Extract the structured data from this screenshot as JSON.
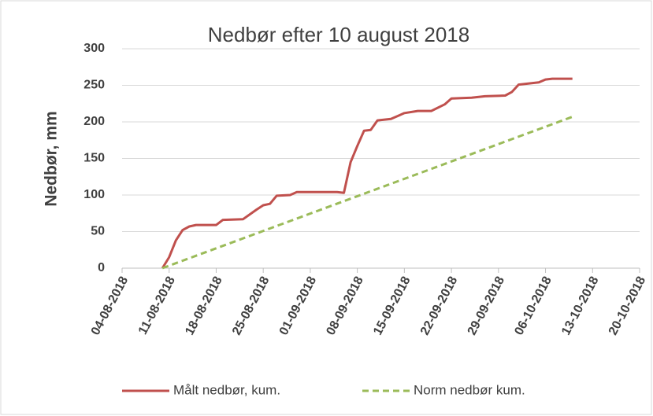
{
  "chart_data": {
    "type": "line",
    "title": "Nedbør efter 10 august 2018",
    "y_label": "Nedbør, mm",
    "xlim": [
      "04-08-2018",
      "20-10-2018"
    ],
    "xticks": [
      "04-08-2018",
      "11-08-2018",
      "18-08-2018",
      "25-08-2018",
      "01-09-2018",
      "08-09-2018",
      "15-09-2018",
      "22-09-2018",
      "29-09-2018",
      "06-10-2018",
      "13-10-2018",
      "20-10-2018"
    ],
    "ylim": [
      0,
      300
    ],
    "yticks": [
      0,
      50,
      100,
      150,
      200,
      250,
      300
    ],
    "grid": true,
    "legend": "bottom",
    "series": [
      {
        "name": "Målt nedbør, kum.",
        "color": "#c0504d",
        "dash": false,
        "x": [
          "10-08-2018",
          "11-08-2018",
          "12-08-2018",
          "13-08-2018",
          "14-08-2018",
          "15-08-2018",
          "18-08-2018",
          "19-08-2018",
          "22-08-2018",
          "24-08-2018",
          "25-08-2018",
          "26-08-2018",
          "27-08-2018",
          "29-08-2018",
          "30-08-2018",
          "05-09-2018",
          "06-09-2018",
          "07-09-2018",
          "08-09-2018",
          "09-09-2018",
          "10-09-2018",
          "11-09-2018",
          "13-09-2018",
          "15-09-2018",
          "17-09-2018",
          "19-09-2018",
          "21-09-2018",
          "22-09-2018",
          "25-09-2018",
          "27-09-2018",
          "30-09-2018",
          "01-10-2018",
          "02-10-2018",
          "05-10-2018",
          "06-10-2018",
          "07-10-2018",
          "10-10-2018"
        ],
        "values": [
          0,
          15,
          38,
          52,
          57,
          59,
          59,
          66,
          67,
          80,
          86,
          88,
          99,
          100,
          104,
          104,
          103,
          145,
          167,
          188,
          189,
          202,
          204,
          212,
          215,
          215,
          224,
          232,
          233,
          235,
          236,
          241,
          251,
          254,
          258,
          259,
          259
        ]
      },
      {
        "name": "Norm nedbør kum.",
        "color": "#9bbb59",
        "dash": true,
        "x": [
          "10-08-2018",
          "10-10-2018"
        ],
        "values": [
          0,
          207
        ]
      }
    ]
  }
}
